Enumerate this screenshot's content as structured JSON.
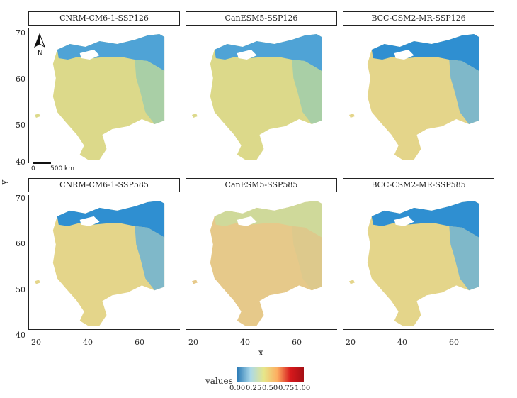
{
  "panels": [
    {
      "title": "CNRM-CM6-1-SSP126",
      "pattern": "mid"
    },
    {
      "title": "CanESM5-SSP126",
      "pattern": "mid"
    },
    {
      "title": "BCC-CSM2-MR-SSP126",
      "pattern": "high"
    },
    {
      "title": "CNRM-CM6-1-SSP585",
      "pattern": "high"
    },
    {
      "title": "CanESM5-SSP585",
      "pattern": "low"
    },
    {
      "title": "BCC-CSM2-MR-SSP585",
      "pattern": "high"
    }
  ],
  "axes": {
    "x_title": "x",
    "y_title": "y",
    "y_ticks": [
      "70",
      "60",
      "50",
      "40"
    ],
    "x_ticks": [
      "20",
      "40",
      "60"
    ]
  },
  "map_elements": {
    "north_label": "N",
    "scale_zero": "0",
    "scale_dist": "500 km"
  },
  "legend": {
    "title": "values",
    "labels": [
      "0.00",
      "0.25",
      "0.50",
      "0.75",
      "1.00"
    ],
    "colors": [
      "#2c7bb6",
      "#abd9e9",
      "#e6e68a",
      "#fdae61",
      "#d7191c",
      "#a50f15"
    ]
  }
}
